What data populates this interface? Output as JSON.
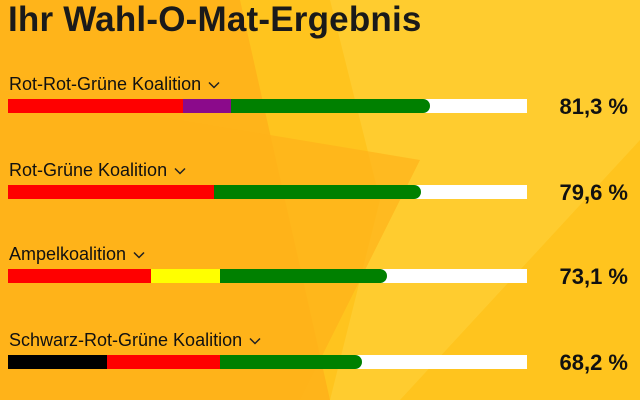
{
  "title": "Ihr Wahl-O-Mat-Ergebnis",
  "colors": {
    "red": "#ff0000",
    "purple": "#8b0a8b",
    "green": "#008000",
    "yellow": "#ffff00",
    "black": "#000000",
    "background": "#ffc41e"
  },
  "chart_data": {
    "type": "bar",
    "orientation": "horizontal",
    "unit": "%",
    "categories": [
      "Rot-Rot-Grüne Koalition",
      "Rot-Grüne Koalition",
      "Ampelkoalition",
      "Schwarz-Rot-Grüne Koalition"
    ],
    "values": [
      81.3,
      79.6,
      73.1,
      68.2
    ],
    "value_labels": [
      "81,3 %",
      "79,6 %",
      "73,1 %",
      "68,2 %"
    ],
    "xlim": [
      0,
      100
    ],
    "stacks": [
      [
        {
          "color": "#ff0000",
          "value": 33.7
        },
        {
          "color": "#8b0a8b",
          "value": 9.3
        },
        {
          "color": "#008000",
          "value": 38.3
        }
      ],
      [
        {
          "color": "#ff0000",
          "value": 39.6
        },
        {
          "color": "#008000",
          "value": 40.0
        }
      ],
      [
        {
          "color": "#ff0000",
          "value": 27.5
        },
        {
          "color": "#ffff00",
          "value": 13.4
        },
        {
          "color": "#008000",
          "value": 32.2
        }
      ],
      [
        {
          "color": "#000000",
          "value": 19.0
        },
        {
          "color": "#ff0000",
          "value": 21.8
        },
        {
          "color": "#008000",
          "value": 27.4
        }
      ]
    ]
  },
  "rows": [
    {
      "label": "Rot-Rot-Grüne Koalition",
      "percent": "81,3 %",
      "icon": "chevron-down-icon"
    },
    {
      "label": "Rot-Grüne Koalition",
      "percent": "79,6 %",
      "icon": "chevron-down-icon"
    },
    {
      "label": "Ampelkoalition",
      "percent": "73,1 %",
      "icon": "chevron-down-icon"
    },
    {
      "label": "Schwarz-Rot-Grüne Koalition",
      "percent": "68,2 %",
      "icon": "chevron-down-icon"
    }
  ]
}
